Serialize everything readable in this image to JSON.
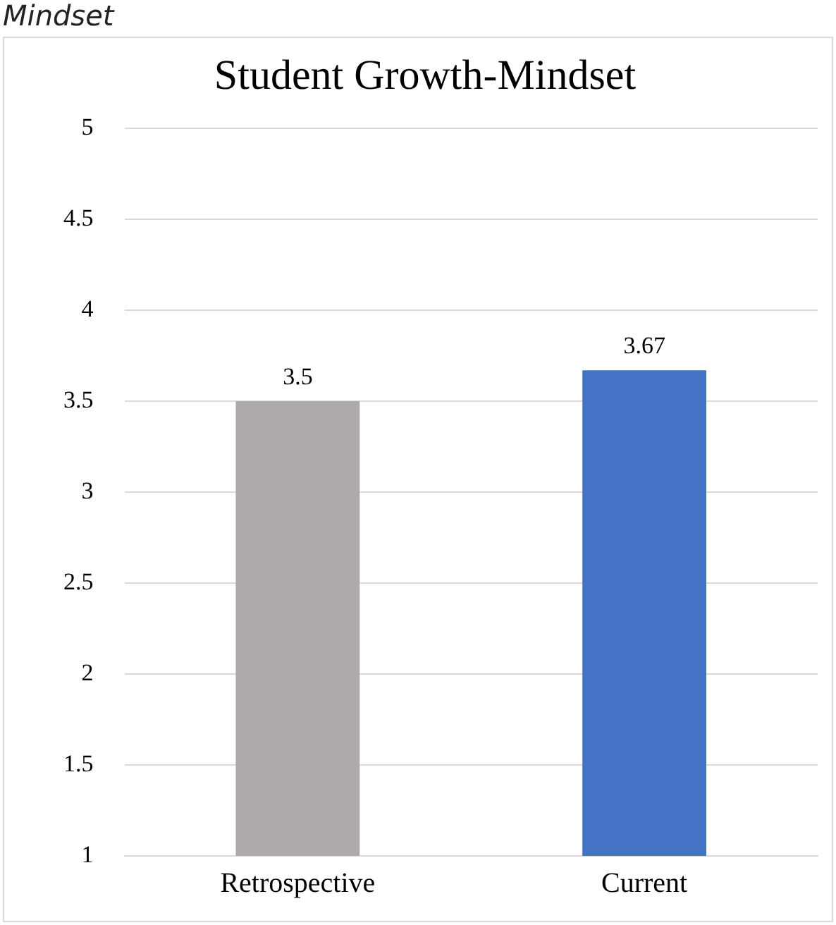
{
  "chart_data": {
    "type": "bar",
    "title": "Student Growth-Mindset",
    "annotations": [
      "Mindset"
    ],
    "categories": [
      "Retrospective",
      "Current"
    ],
    "values": [
      3.5,
      3.67
    ],
    "colors": [
      "#aeaaaa",
      "#4472c4"
    ],
    "ylim": [
      1,
      5
    ],
    "yticks": [
      1,
      1.5,
      2,
      2.5,
      3,
      3.5,
      4,
      4.5,
      5
    ],
    "grid": "y",
    "data_labels": true
  }
}
